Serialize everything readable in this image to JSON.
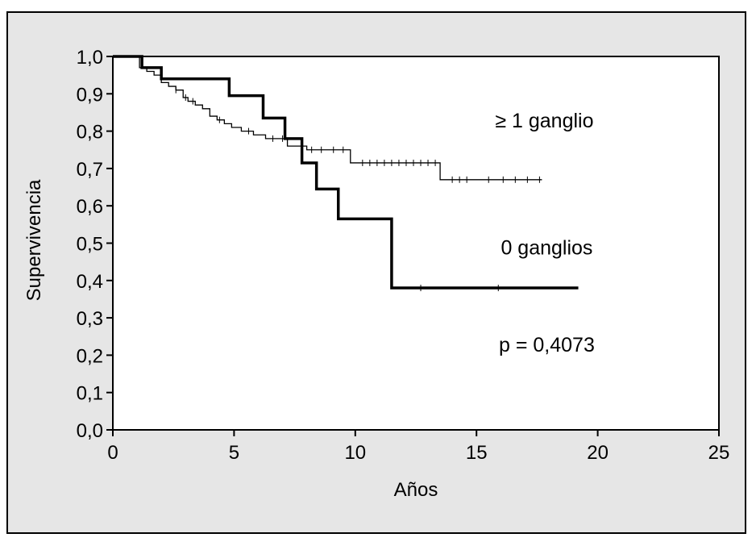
{
  "chart_data": {
    "type": "line",
    "title": "",
    "xlabel": "Años",
    "ylabel": "Supervivencia",
    "xlim": [
      0,
      25
    ],
    "ylim": [
      0,
      1
    ],
    "x_ticks": [
      0,
      5,
      10,
      15,
      20,
      25
    ],
    "x_tick_labels": [
      "0",
      "5",
      "10",
      "15",
      "20",
      "25"
    ],
    "y_ticks": [
      0,
      0.1,
      0.2,
      0.3,
      0.4,
      0.5,
      0.6,
      0.7,
      0.8,
      0.9,
      1.0
    ],
    "y_tick_labels": [
      "0,0",
      "0,1",
      "0,2",
      "0,3",
      "0,4",
      "0,5",
      "0,6",
      "0,7",
      "0,8",
      "0,9",
      "1,0"
    ],
    "grid": false,
    "legend": "none",
    "colors": {
      "background": "#e6e6e6",
      "plot_area": "#ffffff",
      "line": "#000000"
    },
    "series": [
      {
        "name": "≥ 1 ganglio",
        "step": "post",
        "line_weight": "thin",
        "x": [
          0,
          1.1,
          1.4,
          1.7,
          2.0,
          2.3,
          2.6,
          2.9,
          3.1,
          3.4,
          3.7,
          4.0,
          4.3,
          4.6,
          4.9,
          5.3,
          5.8,
          6.3,
          7.2,
          8.0,
          9.8,
          13.5,
          17.7
        ],
        "y": [
          1.0,
          0.97,
          0.96,
          0.95,
          0.93,
          0.92,
          0.91,
          0.89,
          0.88,
          0.87,
          0.86,
          0.84,
          0.83,
          0.82,
          0.81,
          0.8,
          0.79,
          0.78,
          0.76,
          0.75,
          0.715,
          0.67,
          0.67
        ],
        "censor_x": [
          2.6,
          3.0,
          3.3,
          4.4,
          5.6,
          6.6,
          7.0,
          8.2,
          8.6,
          9.1,
          9.5,
          10.3,
          10.6,
          10.9,
          11.2,
          11.5,
          11.8,
          12.1,
          12.4,
          12.7,
          13.0,
          13.3,
          14.0,
          14.3,
          14.6,
          15.5,
          16.1,
          16.6,
          17.1,
          17.6
        ],
        "censor_y": [
          0.91,
          0.89,
          0.88,
          0.83,
          0.8,
          0.78,
          0.78,
          0.75,
          0.75,
          0.75,
          0.75,
          0.715,
          0.715,
          0.715,
          0.715,
          0.715,
          0.715,
          0.715,
          0.715,
          0.715,
          0.715,
          0.715,
          0.67,
          0.67,
          0.67,
          0.67,
          0.67,
          0.67,
          0.67,
          0.67
        ]
      },
      {
        "name": "0 ganglios",
        "step": "post",
        "line_weight": "thick",
        "x": [
          0,
          1.2,
          2.0,
          4.8,
          6.2,
          7.1,
          7.8,
          8.4,
          9.3,
          11.5,
          19.2
        ],
        "y": [
          1.0,
          0.97,
          0.94,
          0.895,
          0.835,
          0.78,
          0.715,
          0.645,
          0.565,
          0.38,
          0.38
        ],
        "censor_x": [
          12.7,
          15.9
        ],
        "censor_y": [
          0.38,
          0.38
        ]
      }
    ],
    "annotations": [
      {
        "text": "≥ 1 ganglio",
        "x": 17.8,
        "y": 0.81
      },
      {
        "text": "0 ganglios",
        "x": 17.9,
        "y": 0.47
      },
      {
        "text": "p = 0,4073",
        "x": 17.9,
        "y": 0.21
      }
    ]
  }
}
